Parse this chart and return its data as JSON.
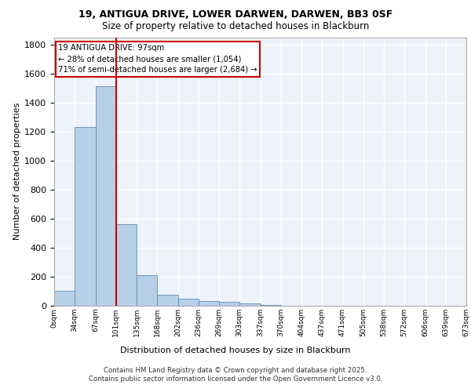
{
  "title_line1": "19, ANTIGUA DRIVE, LOWER DARWEN, DARWEN, BB3 0SF",
  "title_line2": "Size of property relative to detached houses in Blackburn",
  "xlabel": "Distribution of detached houses by size in Blackburn",
  "ylabel": "Number of detached properties",
  "bar_values": [
    100,
    1230,
    1510,
    560,
    210,
    75,
    50,
    35,
    25,
    15,
    5,
    2,
    1,
    0,
    0,
    0,
    0,
    0,
    0,
    0
  ],
  "bar_labels": [
    "0sqm",
    "34sqm",
    "67sqm",
    "101sqm",
    "135sqm",
    "168sqm",
    "202sqm",
    "236sqm",
    "269sqm",
    "303sqm",
    "337sqm",
    "370sqm",
    "404sqm",
    "437sqm",
    "471sqm",
    "505sqm",
    "538sqm",
    "572sqm",
    "606sqm",
    "639sqm",
    "673sqm"
  ],
  "bar_color": "#b8cfe8",
  "bar_edge_color": "#5b8db8",
  "ylim": [
    0,
    1850
  ],
  "yticks": [
    0,
    200,
    400,
    600,
    800,
    1000,
    1200,
    1400,
    1600,
    1800
  ],
  "annotation_line1": "19 ANTIGUA DRIVE: 97sqm",
  "annotation_line2": "← 28% of detached houses are smaller (1,054)",
  "annotation_line3": "71% of semi-detached houses are larger (2,684) →",
  "annotation_box_color": "#ffffff",
  "annotation_box_edge_color": "#cc0000",
  "vline_color": "#cc0000",
  "footer_line1": "Contains HM Land Registry data © Crown copyright and database right 2025.",
  "footer_line2": "Contains public sector information licensed under the Open Government Licence v3.0.",
  "bg_color": "#eef2fa",
  "grid_color": "#ffffff",
  "vline_x_bar_index": 2.5
}
